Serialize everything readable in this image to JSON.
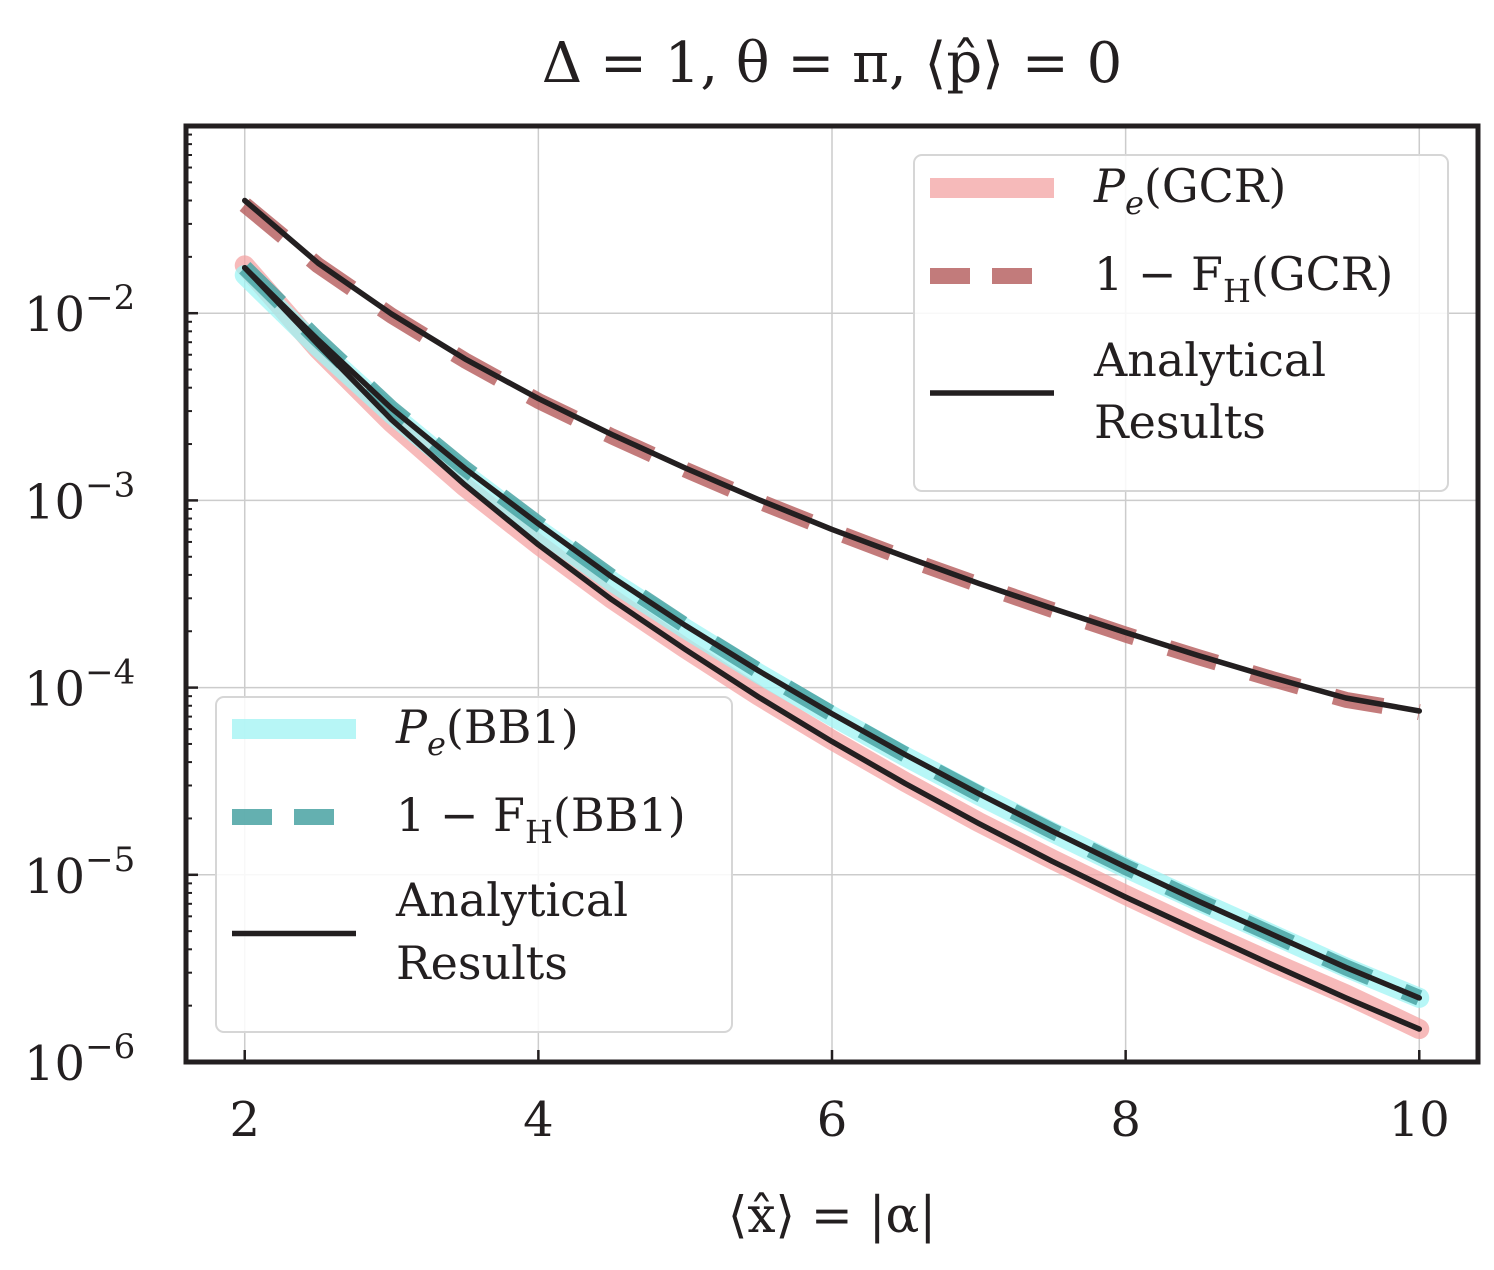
{
  "chart_data": {
    "type": "line",
    "title": "Δ = 1, θ = π, ⟨p̂⟩ = 0",
    "xlabel": "⟨x̂⟩ = |α|",
    "ylabel": "",
    "xlim": [
      1.6,
      10.4
    ],
    "ylim": [
      1e-06,
      0.1
    ],
    "yscale": "log",
    "grid": true,
    "x_ticks": [
      2,
      4,
      6,
      8,
      10
    ],
    "x_tick_labels": [
      "2",
      "4",
      "6",
      "8",
      "10"
    ],
    "y_ticks": [
      0.01,
      0.001,
      0.0001,
      1e-05,
      1e-06
    ],
    "y_tick_labels": [
      {
        "base": "10",
        "exp": "−2"
      },
      {
        "base": "10",
        "exp": "−3"
      },
      {
        "base": "10",
        "exp": "−4"
      },
      {
        "base": "10",
        "exp": "−5"
      },
      {
        "base": "10",
        "exp": "−6"
      }
    ],
    "x": [
      2,
      2.5,
      3,
      3.5,
      4,
      4.5,
      5,
      5.5,
      6,
      6.5,
      7,
      7.5,
      8,
      8.5,
      9,
      9.5,
      10
    ],
    "series": [
      {
        "name": "Pe(GCR)",
        "legend": "gcr",
        "style": "thick",
        "color": "#f4a3a3",
        "values": [
          0.018,
          0.0064,
          0.0026,
          0.00118,
          0.00058,
          0.000298,
          0.000162,
          9.05e-05,
          5.25e-05,
          3.13e-05,
          1.91e-05,
          1.21e-05,
          7.8e-06,
          5.1e-06,
          3.4e-06,
          2.3e-06,
          1.5e-06
        ]
      },
      {
        "name": "1 − FH(GCR)",
        "legend": "gcr",
        "style": "dashed",
        "color": "#b86464",
        "values": [
          0.038,
          0.018,
          0.0097,
          0.0056,
          0.0034,
          0.0022,
          0.00146,
          0.00099,
          0.00069,
          0.00049,
          0.000355,
          0.00026,
          0.000192,
          0.000145,
          0.000111,
          8.6e-05,
          7.4e-05
        ]
      },
      {
        "name": "Analytical Results (GCR)",
        "legend": "gcr",
        "style": "solid",
        "color": "#231f20",
        "values": [
          0.04,
          0.0185,
          0.0099,
          0.0057,
          0.0035,
          0.00225,
          0.00149,
          0.00101,
          0.0007,
          0.0005,
          0.00036,
          0.000265,
          0.000197,
          0.000148,
          0.000113,
          8.8e-05,
          7.5e-05
        ]
      },
      {
        "name": "Pe(BB1)",
        "legend": "bb1",
        "style": "thick",
        "color": "#9ff4f4",
        "values": [
          0.016,
          0.0066,
          0.0029,
          0.00138,
          0.0007,
          0.00037,
          0.000207,
          0.000119,
          7.05e-05,
          4.28e-05,
          2.66e-05,
          1.69e-05,
          1.09e-05,
          7.2e-06,
          4.8e-06,
          3.2e-06,
          2.2e-06
        ]
      },
      {
        "name": "1 − FH(BB1)",
        "legend": "bb1",
        "style": "dashed",
        "color": "#4aa3a3",
        "values": [
          0.0175,
          0.0072,
          0.0031,
          0.00148,
          0.00075,
          0.00039,
          0.000215,
          0.000123,
          7.25e-05,
          4.38e-05,
          2.71e-05,
          1.71e-05,
          1.1e-05,
          7.2e-06,
          4.8e-06,
          3.2e-06,
          2.2e-06
        ]
      },
      {
        "name": "Analytical Results (BB1)",
        "legend": "bb1",
        "style": "solid",
        "color": "#231f20",
        "values": [
          0.0175,
          0.0072,
          0.0031,
          0.00148,
          0.00075,
          0.00039,
          0.000215,
          0.000123,
          7.25e-05,
          4.38e-05,
          2.71e-05,
          1.71e-05,
          1.1e-05,
          7.2e-06,
          4.8e-06,
          3.2e-06,
          2.2e-06
        ]
      },
      {
        "name": "Analytical Results (lower)",
        "legend": "none",
        "style": "solid",
        "color": "#231f20",
        "values": [
          0.0175,
          0.0068,
          0.0027,
          0.00121,
          0.00058,
          0.000295,
          0.00016,
          8.9e-05,
          5.15e-05,
          3.07e-05,
          1.88e-05,
          1.18e-05,
          7.6e-06,
          5e-06,
          3.3e-06,
          2.2e-06,
          1.5e-06
        ]
      }
    ],
    "legends": [
      {
        "id": "gcr",
        "placement": "upper-right",
        "entries": [
          {
            "style": "thick",
            "color": "#f4a3a3",
            "label": "Pe(GCR)",
            "label_math": {
              "p": "P",
              "sub": "e",
              "rest": "(GCR)"
            }
          },
          {
            "style": "dashed",
            "color": "#b86464",
            "label": "1 − FH(GCR)",
            "label_math": {
              "p": "1 − F",
              "sub": "H",
              "rest": "(GCR)"
            }
          },
          {
            "style": "solid",
            "color": "#231f20",
            "label": "Analytical Results",
            "lines": [
              "Analytical",
              "Results"
            ]
          }
        ]
      },
      {
        "id": "bb1",
        "placement": "lower-left",
        "entries": [
          {
            "style": "thick",
            "color": "#9ff4f4",
            "label": "Pe(BB1)",
            "label_math": {
              "p": "P",
              "sub": "e",
              "rest": "(BB1)"
            }
          },
          {
            "style": "dashed",
            "color": "#4aa3a3",
            "label": "1 − FH(BB1)",
            "label_math": {
              "p": "1 − F",
              "sub": "H",
              "rest": "(BB1)"
            }
          },
          {
            "style": "solid",
            "color": "#231f20",
            "label": "Analytical Results",
            "lines": [
              "Analytical",
              "Results"
            ]
          }
        ]
      }
    ]
  }
}
